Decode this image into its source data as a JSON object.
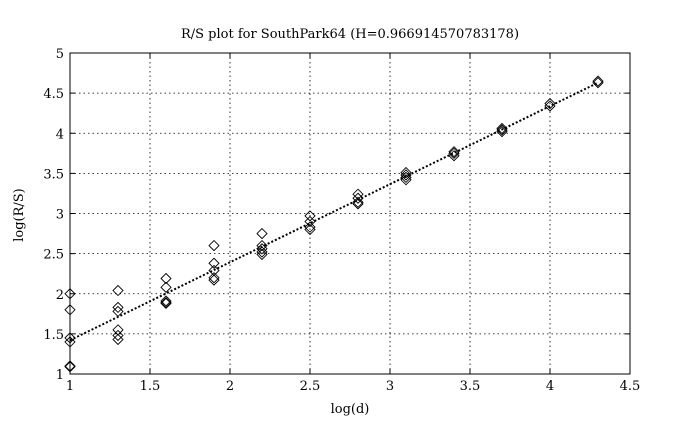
{
  "chart_data": {
    "type": "scatter",
    "title": "R/S plot for SouthPark64 (H=0.966914570783178)",
    "xlabel": "log(d)",
    "ylabel": "log(R/S)",
    "xlim": [
      1,
      4.5
    ],
    "ylim": [
      1,
      5
    ],
    "xticks": [
      1,
      1.5,
      2,
      2.5,
      3,
      3.5,
      4,
      4.5
    ],
    "yticks": [
      1,
      1.5,
      2,
      2.5,
      3,
      3.5,
      4,
      4.5,
      5
    ],
    "xtick_labels": [
      "1",
      "1.5",
      "2",
      "2.5",
      "3",
      "3.5",
      "4",
      "4.5"
    ],
    "ytick_labels": [
      "1",
      "1.5",
      "2",
      "2.5",
      "3",
      "3.5",
      "4",
      "4.5",
      "5"
    ],
    "grid": true,
    "marker": "diamond",
    "points": [
      {
        "x": 1.0,
        "y": 2.0
      },
      {
        "x": 1.0,
        "y": 1.8
      },
      {
        "x": 1.0,
        "y": 1.45
      },
      {
        "x": 1.0,
        "y": 1.4
      },
      {
        "x": 1.0,
        "y": 1.1
      },
      {
        "x": 1.0,
        "y": 1.09
      },
      {
        "x": 1.3,
        "y": 2.04
      },
      {
        "x": 1.3,
        "y": 1.83
      },
      {
        "x": 1.3,
        "y": 1.78
      },
      {
        "x": 1.3,
        "y": 1.55
      },
      {
        "x": 1.3,
        "y": 1.48
      },
      {
        "x": 1.3,
        "y": 1.43
      },
      {
        "x": 1.6,
        "y": 2.19
      },
      {
        "x": 1.6,
        "y": 2.08
      },
      {
        "x": 1.6,
        "y": 1.91
      },
      {
        "x": 1.6,
        "y": 1.89
      },
      {
        "x": 1.6,
        "y": 1.88
      },
      {
        "x": 1.9,
        "y": 2.6
      },
      {
        "x": 1.9,
        "y": 2.38
      },
      {
        "x": 1.9,
        "y": 2.29
      },
      {
        "x": 1.9,
        "y": 2.2
      },
      {
        "x": 1.9,
        "y": 2.17
      },
      {
        "x": 2.2,
        "y": 2.75
      },
      {
        "x": 2.2,
        "y": 2.6
      },
      {
        "x": 2.2,
        "y": 2.56
      },
      {
        "x": 2.2,
        "y": 2.52
      },
      {
        "x": 2.2,
        "y": 2.49
      },
      {
        "x": 2.5,
        "y": 2.97
      },
      {
        "x": 2.5,
        "y": 2.9
      },
      {
        "x": 2.5,
        "y": 2.83
      },
      {
        "x": 2.5,
        "y": 2.8
      },
      {
        "x": 2.8,
        "y": 3.24
      },
      {
        "x": 2.8,
        "y": 3.19
      },
      {
        "x": 2.8,
        "y": 3.14
      },
      {
        "x": 2.8,
        "y": 3.12
      },
      {
        "x": 3.1,
        "y": 3.51
      },
      {
        "x": 3.1,
        "y": 3.48
      },
      {
        "x": 3.1,
        "y": 3.45
      },
      {
        "x": 3.1,
        "y": 3.42
      },
      {
        "x": 3.4,
        "y": 3.77
      },
      {
        "x": 3.4,
        "y": 3.75
      },
      {
        "x": 3.4,
        "y": 3.72
      },
      {
        "x": 3.7,
        "y": 4.06
      },
      {
        "x": 3.7,
        "y": 4.04
      },
      {
        "x": 3.7,
        "y": 4.02
      },
      {
        "x": 4.0,
        "y": 4.37
      },
      {
        "x": 4.0,
        "y": 4.34
      },
      {
        "x": 4.3,
        "y": 4.65
      },
      {
        "x": 4.3,
        "y": 4.63
      }
    ],
    "fit_line": {
      "x": [
        1.0,
        4.3
      ],
      "y": [
        1.42,
        4.63
      ],
      "style": "dotted"
    }
  }
}
